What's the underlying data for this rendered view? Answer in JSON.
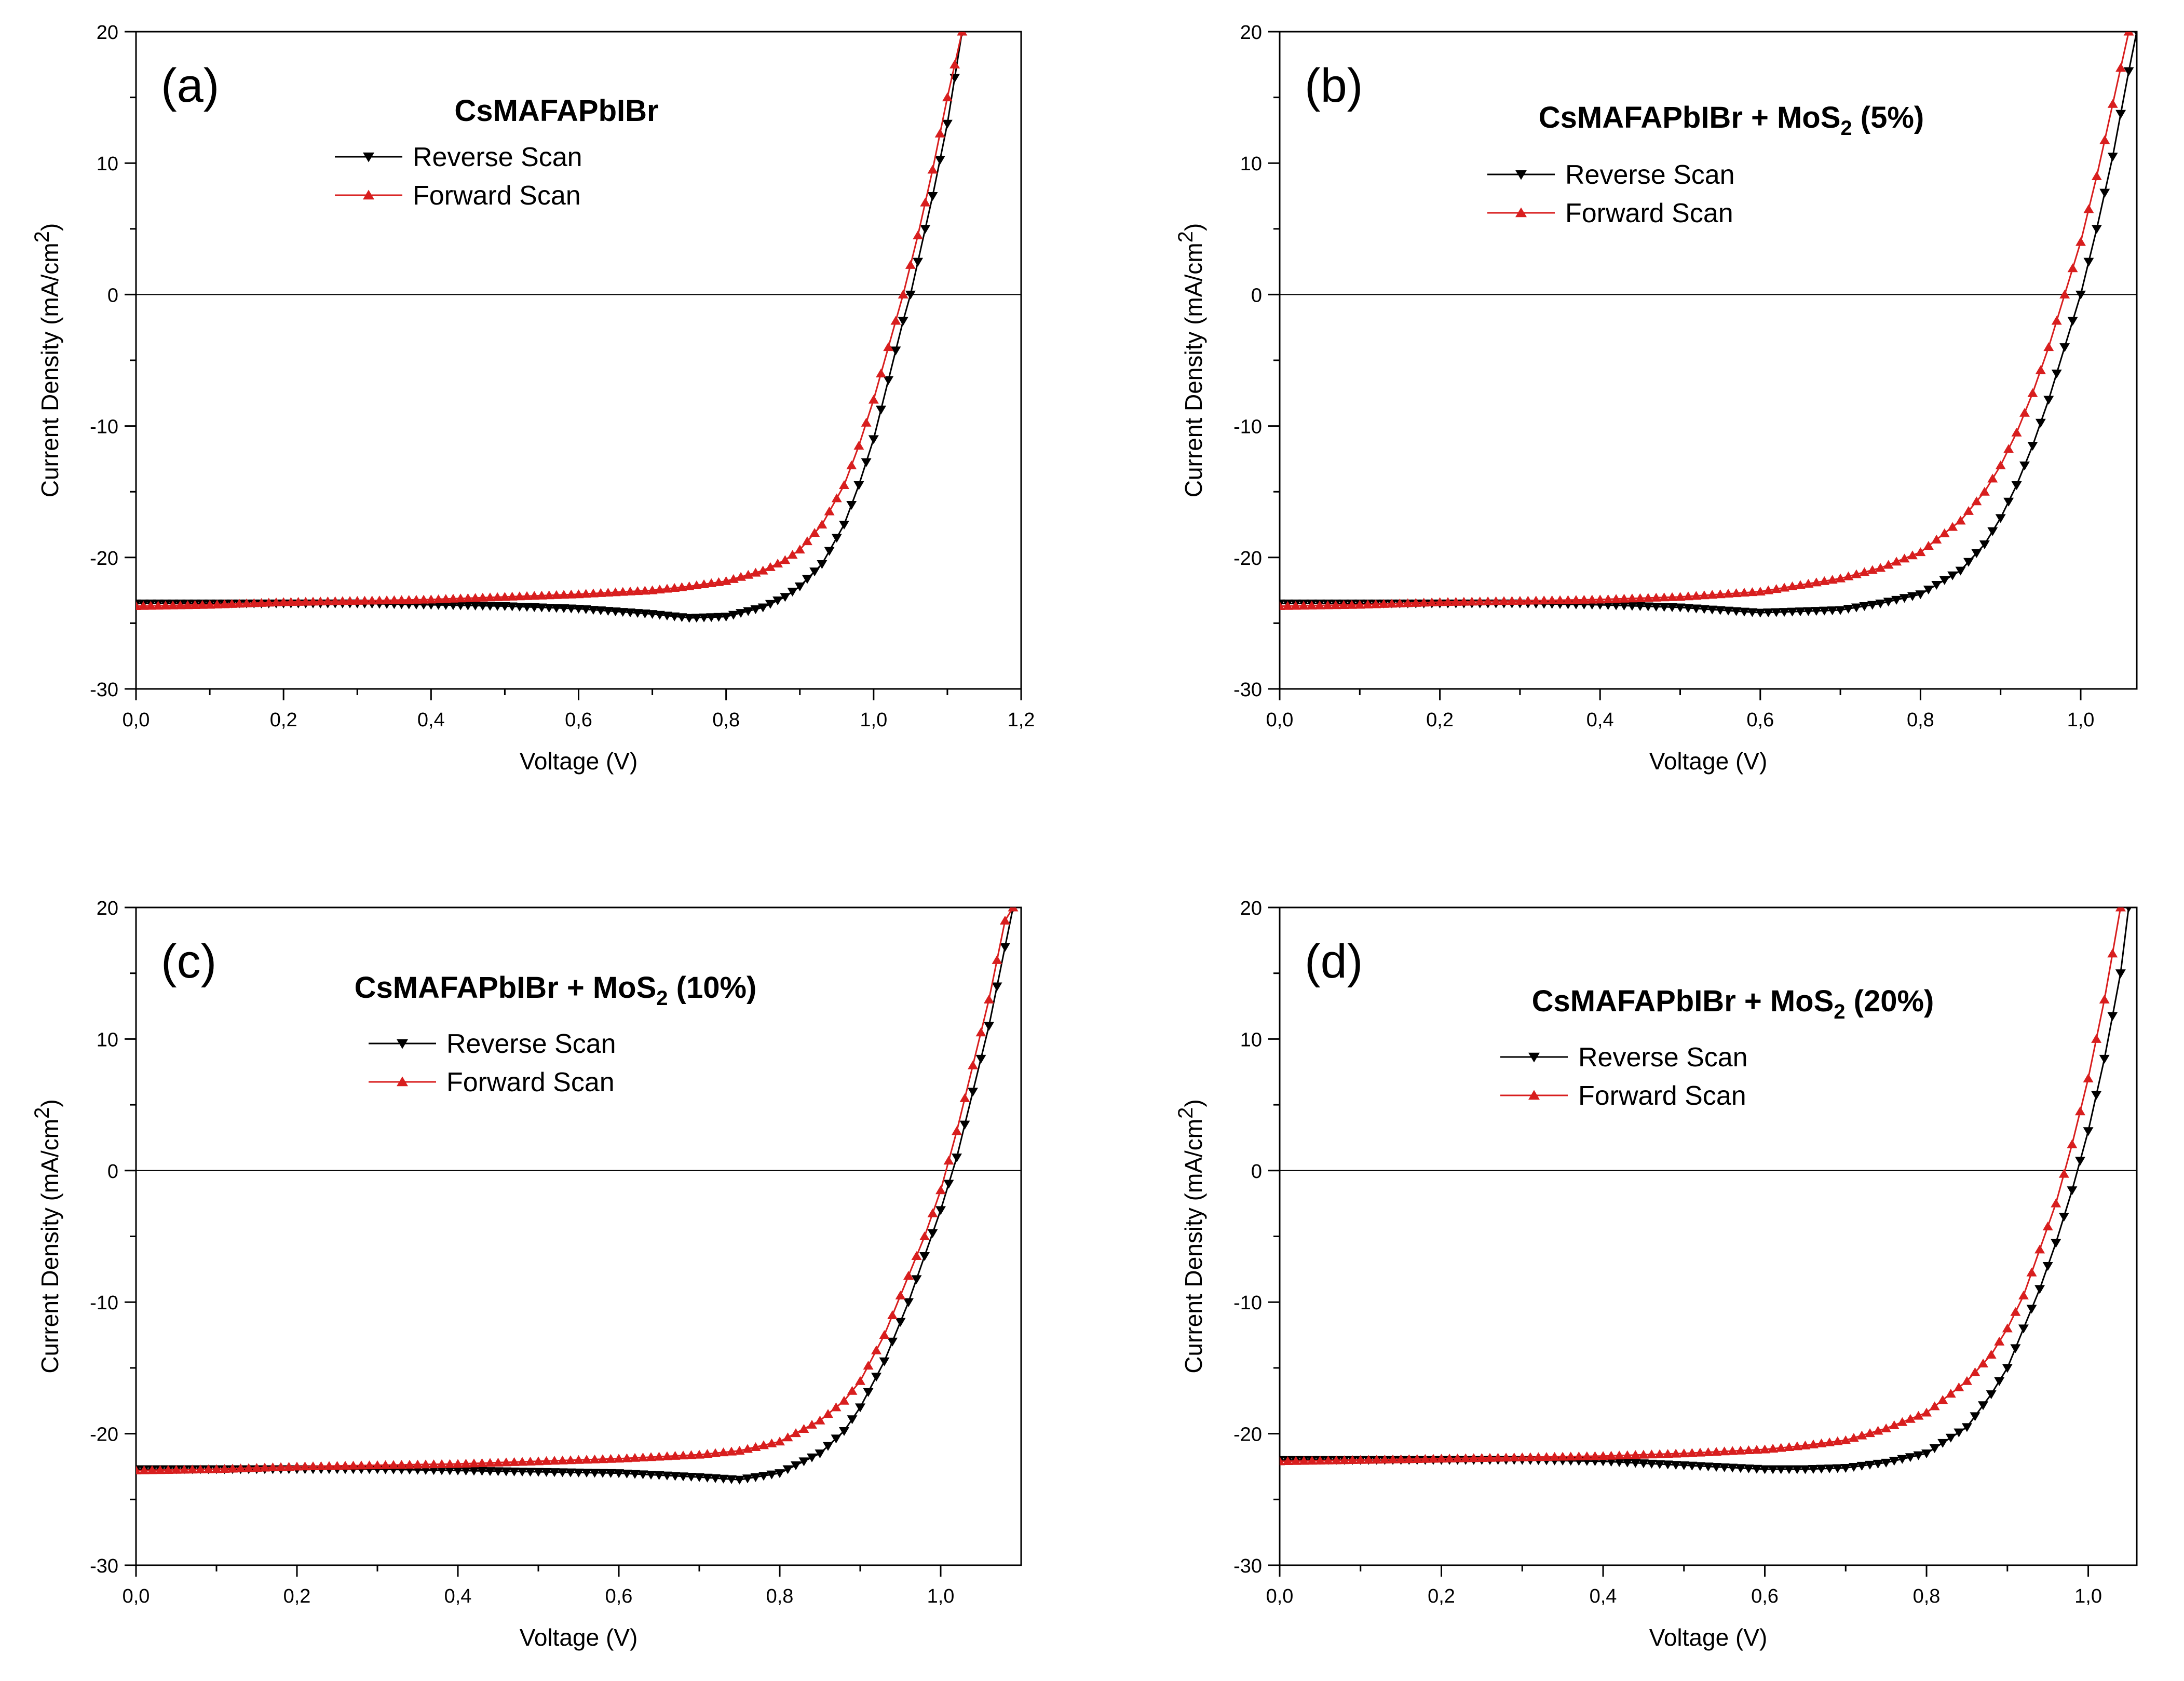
{
  "chart_data": [
    {
      "type": "line",
      "panel_label": "(a)",
      "title": {
        "text": "CsMAFAPbIBr",
        "subscript": "",
        "suffix": ""
      },
      "xlabel": "Voltage (V)",
      "ylabel": {
        "main": "Current Density (mA/cm",
        "sup": "2",
        "end": ")"
      },
      "xlim": [
        0,
        1.2
      ],
      "ylim": [
        -30,
        20
      ],
      "xticks": [
        "0,0",
        "0,2",
        "0,4",
        "0,6",
        "0,8",
        "1,0",
        "1,2"
      ],
      "yticks": [
        "-30",
        "-20",
        "-10",
        "0",
        "10",
        "20"
      ],
      "legend_position": "top-center",
      "series": [
        {
          "name": "Reverse Scan",
          "color": "#000000",
          "marker": "triangle-down",
          "points": [
            [
              0,
              -23.5
            ],
            [
              0.1,
              -23.5
            ],
            [
              0.2,
              -23.5
            ],
            [
              0.3,
              -23.5
            ],
            [
              0.4,
              -23.6
            ],
            [
              0.5,
              -23.7
            ],
            [
              0.6,
              -23.9
            ],
            [
              0.7,
              -24.3
            ],
            [
              0.75,
              -24.6
            ],
            [
              0.8,
              -24.5
            ],
            [
              0.85,
              -23.8
            ],
            [
              0.88,
              -23
            ],
            [
              0.9,
              -22.2
            ],
            [
              0.93,
              -20.5
            ],
            [
              0.96,
              -17.5
            ],
            [
              0.98,
              -14.5
            ],
            [
              1.0,
              -11
            ],
            [
              1.02,
              -6.5
            ],
            [
              1.04,
              -2
            ],
            [
              1.05,
              0
            ],
            [
              1.06,
              2.5
            ],
            [
              1.08,
              7.5
            ],
            [
              1.1,
              13
            ],
            [
              1.12,
              20
            ]
          ]
        },
        {
          "name": "Forward Scan",
          "color": "#d81e1e",
          "marker": "triangle-up",
          "points": [
            [
              0,
              -23.7
            ],
            [
              0.1,
              -23.6
            ],
            [
              0.2,
              -23.4
            ],
            [
              0.3,
              -23.3
            ],
            [
              0.4,
              -23.2
            ],
            [
              0.5,
              -23
            ],
            [
              0.6,
              -22.8
            ],
            [
              0.7,
              -22.5
            ],
            [
              0.75,
              -22.2
            ],
            [
              0.8,
              -21.8
            ],
            [
              0.85,
              -21
            ],
            [
              0.88,
              -20.2
            ],
            [
              0.9,
              -19.4
            ],
            [
              0.93,
              -17.5
            ],
            [
              0.96,
              -14.5
            ],
            [
              0.98,
              -11.5
            ],
            [
              1.0,
              -8
            ],
            [
              1.02,
              -4
            ],
            [
              1.04,
              0
            ],
            [
              1.06,
              4.5
            ],
            [
              1.08,
              9.5
            ],
            [
              1.1,
              15
            ],
            [
              1.12,
              20
            ]
          ]
        }
      ]
    },
    {
      "type": "line",
      "panel_label": "(b)",
      "title": {
        "text": "CsMAFAPbIBr + MoS",
        "subscript": "2",
        "suffix": " (5%)"
      },
      "xlabel": "Voltage (V)",
      "ylabel": {
        "main": "Current Density (mA/cm",
        "sup": "2",
        "end": ")"
      },
      "xlim": [
        0,
        1.07
      ],
      "ylim": [
        -30,
        20
      ],
      "xticks": [
        "0,0",
        "0,2",
        "0,4",
        "0,6",
        "0,8",
        "1,0"
      ],
      "yticks": [
        "-30",
        "-20",
        "-10",
        "0",
        "10",
        "20"
      ],
      "legend_position": "top-center",
      "series": [
        {
          "name": "Reverse Scan",
          "color": "#000000",
          "marker": "triangle-down",
          "points": [
            [
              0,
              -23.5
            ],
            [
              0.1,
              -23.5
            ],
            [
              0.2,
              -23.5
            ],
            [
              0.3,
              -23.5
            ],
            [
              0.4,
              -23.6
            ],
            [
              0.5,
              -23.8
            ],
            [
              0.6,
              -24.2
            ],
            [
              0.7,
              -24
            ],
            [
              0.75,
              -23.5
            ],
            [
              0.8,
              -22.8
            ],
            [
              0.85,
              -21
            ],
            [
              0.88,
              -19
            ],
            [
              0.9,
              -17
            ],
            [
              0.92,
              -14.5
            ],
            [
              0.94,
              -11.5
            ],
            [
              0.96,
              -8
            ],
            [
              0.98,
              -4
            ],
            [
              1.0,
              0
            ],
            [
              1.02,
              5
            ],
            [
              1.04,
              10.5
            ],
            [
              1.06,
              17
            ],
            [
              1.07,
              20
            ]
          ]
        },
        {
          "name": "Forward Scan",
          "color": "#d81e1e",
          "marker": "triangle-up",
          "points": [
            [
              0,
              -23.7
            ],
            [
              0.1,
              -23.6
            ],
            [
              0.2,
              -23.4
            ],
            [
              0.3,
              -23.3
            ],
            [
              0.4,
              -23.2
            ],
            [
              0.5,
              -23
            ],
            [
              0.6,
              -22.6
            ],
            [
              0.7,
              -21.6
            ],
            [
              0.75,
              -20.8
            ],
            [
              0.8,
              -19.6
            ],
            [
              0.85,
              -17.2
            ],
            [
              0.88,
              -15
            ],
            [
              0.9,
              -13
            ],
            [
              0.92,
              -10.5
            ],
            [
              0.94,
              -7.5
            ],
            [
              0.96,
              -4
            ],
            [
              0.98,
              0
            ],
            [
              1.0,
              4
            ],
            [
              1.02,
              9
            ],
            [
              1.04,
              14.5
            ],
            [
              1.06,
              20
            ]
          ]
        }
      ]
    },
    {
      "type": "line",
      "panel_label": "(c)",
      "title": {
        "text": "CsMAFAPbIBr + MoS",
        "subscript": "2",
        "suffix": " (10%)"
      },
      "xlabel": "Voltage (V)",
      "ylabel": {
        "main": "Current Density (mA/cm",
        "sup": "2",
        "end": ")"
      },
      "xlim": [
        0,
        1.1
      ],
      "ylim": [
        -30,
        20
      ],
      "xticks": [
        "0,0",
        "0,2",
        "0,4",
        "0,6",
        "0,8",
        "1,0"
      ],
      "yticks": [
        "-30",
        "-20",
        "-10",
        "0",
        "10",
        "20"
      ],
      "legend_position": "top-center",
      "series": [
        {
          "name": "Reverse Scan",
          "color": "#000000",
          "marker": "triangle-down",
          "points": [
            [
              0,
              -22.7
            ],
            [
              0.1,
              -22.7
            ],
            [
              0.2,
              -22.7
            ],
            [
              0.3,
              -22.7
            ],
            [
              0.4,
              -22.8
            ],
            [
              0.5,
              -22.9
            ],
            [
              0.6,
              -23
            ],
            [
              0.7,
              -23.3
            ],
            [
              0.75,
              -23.5
            ],
            [
              0.8,
              -23
            ],
            [
              0.85,
              -21.5
            ],
            [
              0.88,
              -19.8
            ],
            [
              0.9,
              -18
            ],
            [
              0.93,
              -14.5
            ],
            [
              0.96,
              -10
            ],
            [
              0.98,
              -6.5
            ],
            [
              1.0,
              -3
            ],
            [
              1.02,
              1
            ],
            [
              1.04,
              6
            ],
            [
              1.06,
              11
            ],
            [
              1.08,
              17
            ],
            [
              1.09,
              20
            ]
          ]
        },
        {
          "name": "Forward Scan",
          "color": "#d81e1e",
          "marker": "triangle-up",
          "points": [
            [
              0,
              -22.8
            ],
            [
              0.1,
              -22.7
            ],
            [
              0.2,
              -22.5
            ],
            [
              0.3,
              -22.4
            ],
            [
              0.4,
              -22.3
            ],
            [
              0.5,
              -22.1
            ],
            [
              0.6,
              -21.9
            ],
            [
              0.7,
              -21.6
            ],
            [
              0.75,
              -21.3
            ],
            [
              0.8,
              -20.6
            ],
            [
              0.85,
              -19
            ],
            [
              0.88,
              -17.5
            ],
            [
              0.9,
              -16
            ],
            [
              0.93,
              -12.5
            ],
            [
              0.96,
              -8
            ],
            [
              0.98,
              -5
            ],
            [
              1.0,
              -1.5
            ],
            [
              1.02,
              3
            ],
            [
              1.04,
              8
            ],
            [
              1.06,
              13
            ],
            [
              1.08,
              19
            ],
            [
              1.09,
              20
            ]
          ]
        }
      ]
    },
    {
      "type": "line",
      "panel_label": "(d)",
      "title": {
        "text": "CsMAFAPbIBr + MoS",
        "subscript": "2",
        "suffix": " (20%)"
      },
      "xlabel": "Voltage (V)",
      "ylabel": {
        "main": "Current Density (mA/cm",
        "sup": "2",
        "end": ")"
      },
      "xlim": [
        0,
        1.06
      ],
      "ylim": [
        -30,
        20
      ],
      "xticks": [
        "0,0",
        "0,2",
        "0,4",
        "0,6",
        "0,8",
        "1,0"
      ],
      "yticks": [
        "-30",
        "-20",
        "-10",
        "0",
        "10",
        "20"
      ],
      "legend_position": "top-center",
      "series": [
        {
          "name": "Reverse Scan",
          "color": "#000000",
          "marker": "triangle-down",
          "points": [
            [
              0,
              -22
            ],
            [
              0.1,
              -22
            ],
            [
              0.2,
              -22
            ],
            [
              0.3,
              -22
            ],
            [
              0.4,
              -22.1
            ],
            [
              0.5,
              -22.4
            ],
            [
              0.6,
              -22.7
            ],
            [
              0.65,
              -22.7
            ],
            [
              0.7,
              -22.6
            ],
            [
              0.75,
              -22.2
            ],
            [
              0.8,
              -21.5
            ],
            [
              0.85,
              -19.5
            ],
            [
              0.88,
              -17
            ],
            [
              0.9,
              -15
            ],
            [
              0.92,
              -12
            ],
            [
              0.94,
              -9
            ],
            [
              0.96,
              -5.5
            ],
            [
              0.98,
              -1.5
            ],
            [
              1.0,
              3
            ],
            [
              1.02,
              8.5
            ],
            [
              1.04,
              15
            ],
            [
              1.05,
              20
            ]
          ]
        },
        {
          "name": "Forward Scan",
          "color": "#d81e1e",
          "marker": "triangle-up",
          "points": [
            [
              0,
              -22.1
            ],
            [
              0.1,
              -22
            ],
            [
              0.2,
              -21.9
            ],
            [
              0.3,
              -21.8
            ],
            [
              0.4,
              -21.7
            ],
            [
              0.5,
              -21.5
            ],
            [
              0.6,
              -21.2
            ],
            [
              0.65,
              -20.9
            ],
            [
              0.7,
              -20.5
            ],
            [
              0.75,
              -19.6
            ],
            [
              0.8,
              -18.4
            ],
            [
              0.85,
              -16
            ],
            [
              0.88,
              -14
            ],
            [
              0.9,
              -12
            ],
            [
              0.92,
              -9.5
            ],
            [
              0.94,
              -6
            ],
            [
              0.96,
              -2.5
            ],
            [
              0.98,
              2
            ],
            [
              1.0,
              7
            ],
            [
              1.02,
              13
            ],
            [
              1.04,
              20
            ]
          ]
        }
      ]
    }
  ]
}
